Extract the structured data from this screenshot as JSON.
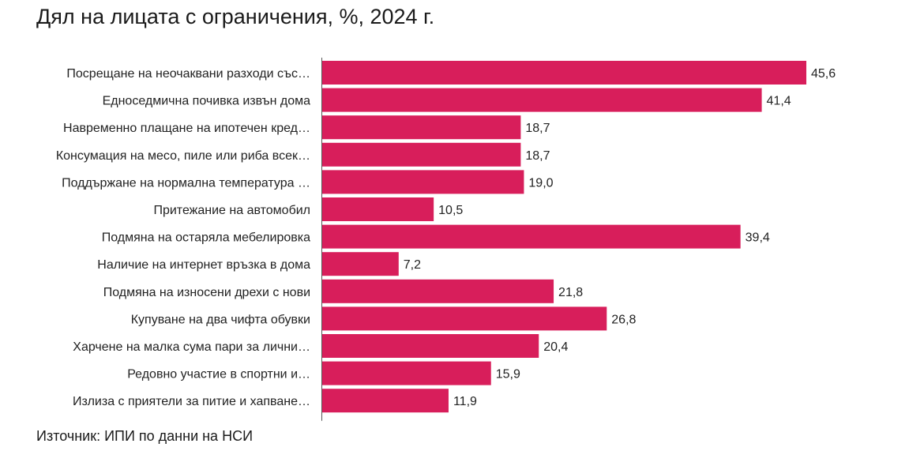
{
  "title": "Дял на лицата с ограничения, %, 2024 г.",
  "source": "Източник: ИПИ по данни на НСИ",
  "colors": {
    "bar": "#d81e5b",
    "axis": "#555555",
    "text": "#222222"
  },
  "chart_data": {
    "type": "bar",
    "orientation": "horizontal",
    "title": "Дял на лицата с ограничения, %, 2024 г.",
    "categories": [
      "Посрещане на неочаквани разходи със…",
      "Едноседмична почивка извън дома",
      "Навременно плащане на ипотечен кред…",
      "Консумация на месо, пиле или риба всек…",
      "Поддържане на нормална температура …",
      "Притежание на автомобил",
      "Подмяна на остаряла мебелировка",
      "Наличие на интернет връзка в дома",
      "Подмяна на износени дрехи с нови",
      "Купуване на два чифта обувки",
      "Харчене на малка сума пари за лични…",
      "Редовно участие в спортни и…",
      "Излиза с приятели за питие и хапване…"
    ],
    "values": [
      45.6,
      41.4,
      18.7,
      18.7,
      19.0,
      10.5,
      39.4,
      7.2,
      21.8,
      26.8,
      20.4,
      15.9,
      11.9
    ],
    "value_labels": [
      "45,6",
      "41,4",
      "18,7",
      "18,7",
      "19,0",
      "10,5",
      "39,4",
      "7,2",
      "21,8",
      "26,8",
      "20,4",
      "15,9",
      "11,9"
    ],
    "xlim": [
      0,
      50
    ],
    "grid": false,
    "legend": "none"
  }
}
